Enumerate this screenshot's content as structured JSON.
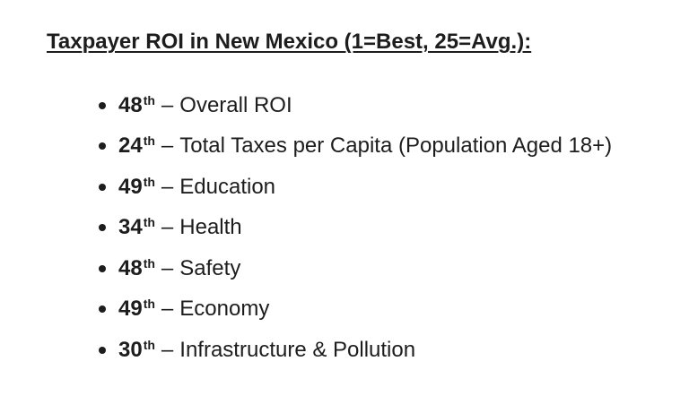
{
  "page": {
    "background": "#ffffff",
    "text_color": "#1d1d1d"
  },
  "heading": {
    "text": "Taxpayer ROI in New Mexico (1=Best, 25=Avg.):"
  },
  "list": {
    "separator": "–",
    "items": [
      {
        "rank": "48",
        "suffix": "th",
        "label": "Overall ROI"
      },
      {
        "rank": "24",
        "suffix": "th",
        "label": "Total Taxes per Capita (Population Aged 18+)"
      },
      {
        "rank": "49",
        "suffix": "th",
        "label": "Education"
      },
      {
        "rank": "34",
        "suffix": "th",
        "label": "Health"
      },
      {
        "rank": "48",
        "suffix": "th",
        "label": "Safety"
      },
      {
        "rank": "49",
        "suffix": "th",
        "label": "Economy"
      },
      {
        "rank": "30",
        "suffix": "th",
        "label": "Infrastructure & Pollution"
      }
    ]
  }
}
